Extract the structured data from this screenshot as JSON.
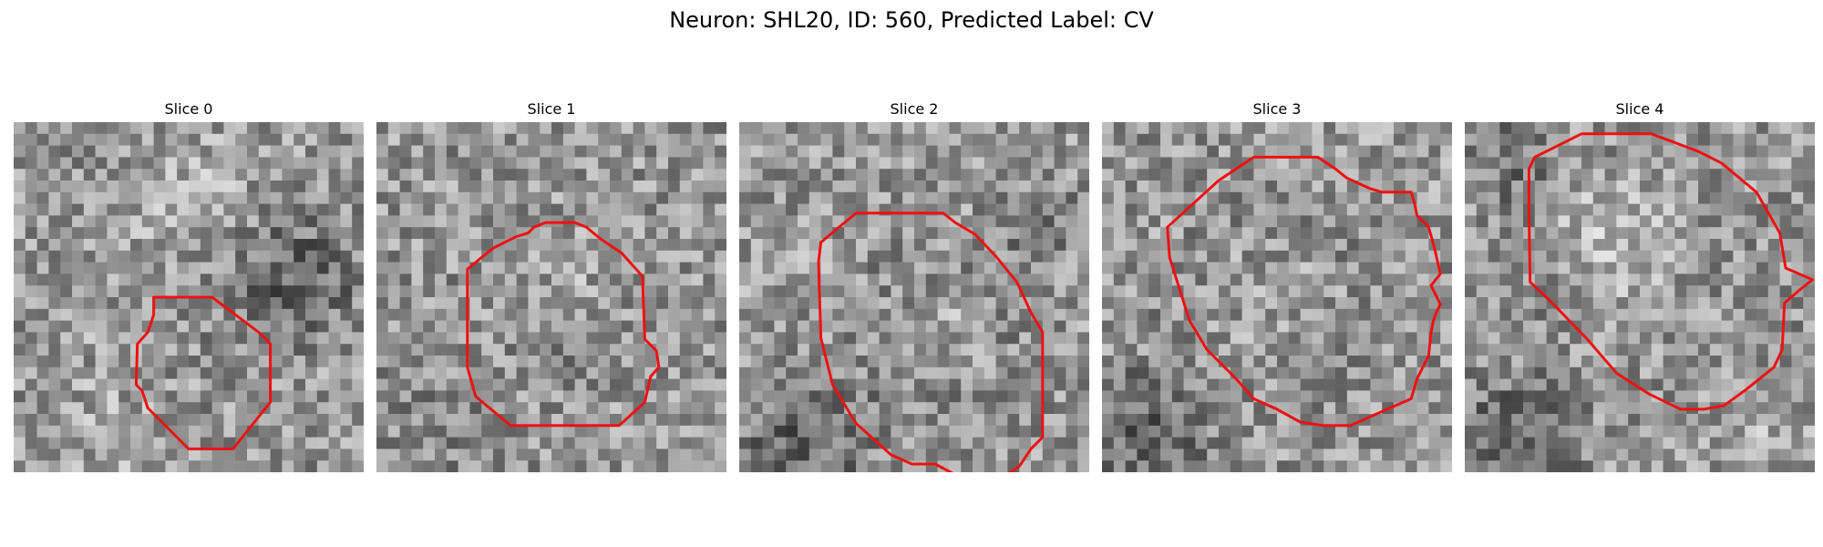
{
  "figure": {
    "title": "Neuron: SHL20, ID: 560, Predicted Label: CV"
  },
  "contour_color": "#ee1111",
  "panels": [
    {
      "title": "Slice 0"
    },
    {
      "title": "Slice 1"
    },
    {
      "title": "Slice 2"
    },
    {
      "title": "Slice 3"
    },
    {
      "title": "Slice 4"
    }
  ]
}
